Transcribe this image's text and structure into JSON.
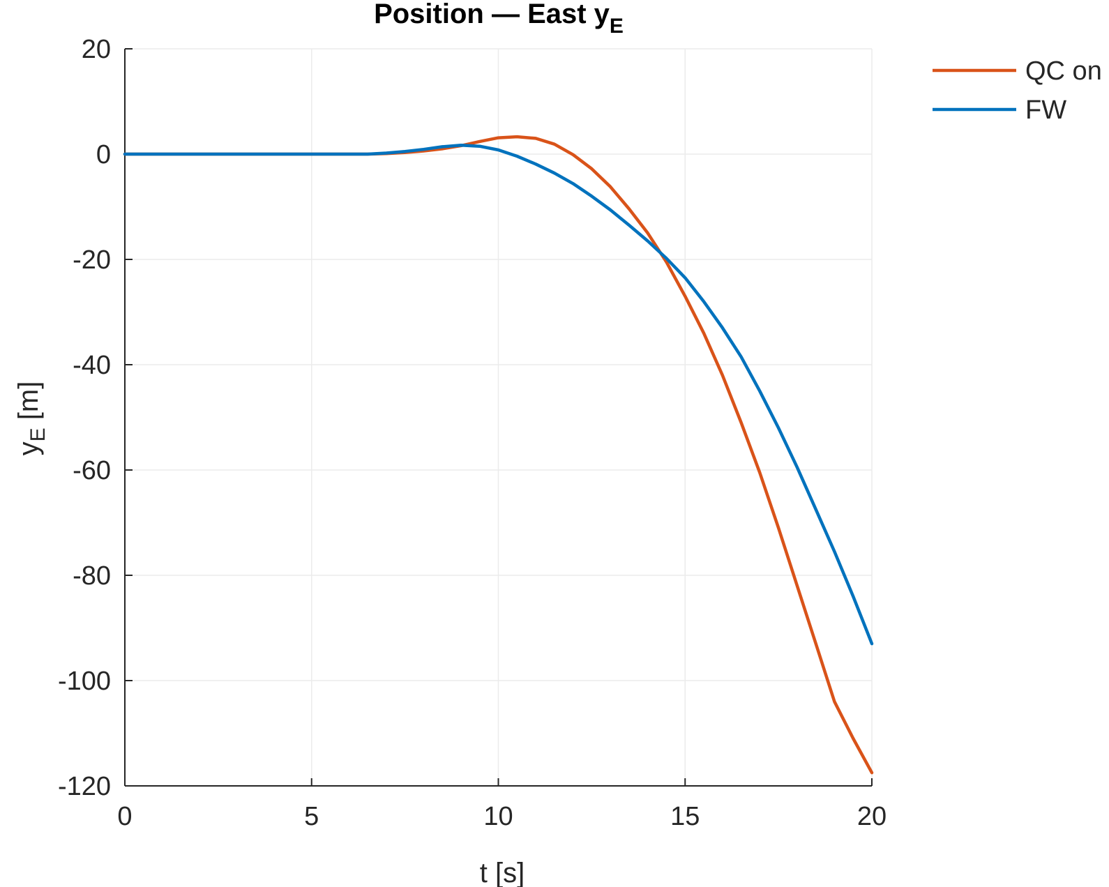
{
  "chart_data": {
    "type": "line",
    "title": "Position — East y",
    "title_subscript": "E",
    "xlabel": "t [s]",
    "ylabel": "y",
    "ylabel_subscript": "E",
    "ylabel_suffix": " [m]",
    "xlim": [
      0,
      20
    ],
    "ylim": [
      -120,
      20
    ],
    "xticks": [
      0,
      5,
      10,
      15,
      20
    ],
    "yticks": [
      20,
      0,
      -20,
      -40,
      -60,
      -80,
      -100,
      -120
    ],
    "grid": true,
    "legend_position": "top-right",
    "series": [
      {
        "name": "QC on",
        "color": "#D95319",
        "x": [
          0,
          5,
          6.5,
          7,
          7.5,
          8,
          8.5,
          9,
          9.5,
          10,
          10.5,
          11,
          11.5,
          12,
          12.5,
          13,
          13.5,
          14,
          14.5,
          15,
          15.5,
          16,
          16.5,
          17,
          17.5,
          18,
          18.5,
          19,
          19.5,
          20
        ],
        "y": [
          0,
          0,
          0,
          0.1,
          0.3,
          0.6,
          1.0,
          1.6,
          2.4,
          3.1,
          3.3,
          3.0,
          1.9,
          -0.1,
          -2.8,
          -6.2,
          -10.4,
          -15.0,
          -20.5,
          -27.0,
          -34.0,
          -42.0,
          -51.0,
          -60.5,
          -71.0,
          -82.0,
          -93.0,
          -104.0,
          -111.0,
          -117.5
        ]
      },
      {
        "name": "FW",
        "color": "#0072BD",
        "x": [
          0,
          5,
          6.5,
          7,
          7.5,
          8,
          8.5,
          9,
          9.5,
          10,
          10.5,
          11,
          11.5,
          12,
          12.5,
          13,
          13.5,
          14,
          14.5,
          15,
          15.5,
          16,
          16.5,
          17,
          17.5,
          18,
          18.5,
          19,
          19.5,
          20
        ],
        "y": [
          0,
          0,
          0,
          0.2,
          0.5,
          0.9,
          1.4,
          1.7,
          1.5,
          0.8,
          -0.4,
          -1.9,
          -3.6,
          -5.6,
          -8.0,
          -10.6,
          -13.5,
          -16.5,
          -19.8,
          -23.5,
          -28.0,
          -33.0,
          -38.5,
          -45.0,
          -52.0,
          -59.5,
          -67.5,
          -75.5,
          -84.0,
          -93.0
        ]
      }
    ]
  }
}
